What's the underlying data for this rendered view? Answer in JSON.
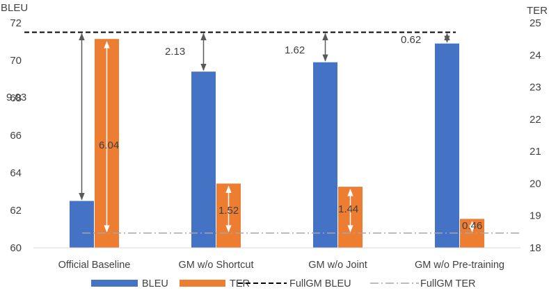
{
  "chart_data": {
    "type": "bar",
    "categories": [
      "Official Baseline",
      "GM w/o Shortcut",
      "GM w/o Joint",
      "GM w/o Pre-training"
    ],
    "series": [
      {
        "name": "BLEU",
        "axis": "left",
        "values": [
          62.5,
          69.4,
          69.9,
          70.9
        ]
      },
      {
        "name": "TER",
        "axis": "right",
        "values": [
          24.5,
          20.0,
          19.9,
          18.9
        ]
      }
    ],
    "reference_lines": [
      {
        "name": "FullGM BLEU",
        "axis": "left",
        "value": 71.5,
        "style": "dashed"
      },
      {
        "name": "FullGM TER",
        "axis": "right",
        "value": 18.46,
        "style": "dash-dot"
      }
    ],
    "annotations": {
      "bleu_gaps": [
        "9.03",
        "2.13",
        "1.62",
        "0.62"
      ],
      "ter_gaps": [
        "6.04",
        "1.52",
        "1.44",
        "0.46"
      ]
    },
    "ylabel": "BLEU",
    "y2label": "TER",
    "ylim": [
      60,
      72
    ],
    "y2lim": [
      18,
      25
    ],
    "yticks": [
      "60",
      "62",
      "64",
      "66",
      "68",
      "70",
      "72"
    ],
    "y2ticks": [
      "18",
      "19",
      "20",
      "21",
      "22",
      "23",
      "24",
      "25"
    ],
    "legend_position": "bottom",
    "grid": false,
    "colors": {
      "BLEU": "#4472C4",
      "TER": "#ED7D31",
      "bleu_arrow": "#595959",
      "ter_arrow": "#ffffff",
      "fullgm_bleu_line": "#000000",
      "fullgm_ter_line": "#A6A6A6"
    }
  }
}
